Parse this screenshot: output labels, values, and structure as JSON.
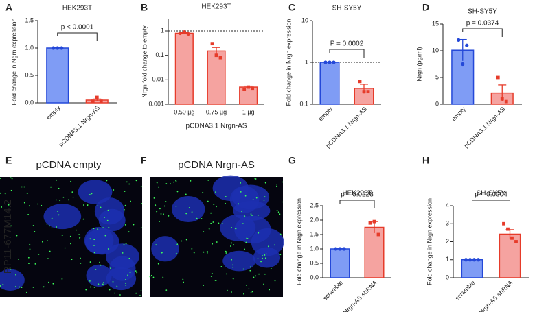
{
  "panel_labels": [
    "A",
    "B",
    "C",
    "D",
    "E",
    "F",
    "G",
    "H"
  ],
  "images": [
    {
      "title": "pCDNA empty"
    },
    {
      "title": "pCDNA Nrgn-AS"
    }
  ],
  "image_row_label": "RP11-677M14.2",
  "chart_data": [
    {
      "type": "bar",
      "title": "HEK293T",
      "y_label": "Fold change in Ngrn expression",
      "categories": [
        "empty",
        "pCDNA3.1 Nrgn-AS"
      ],
      "values": [
        1.0,
        0.05
      ],
      "errors": [
        0.005,
        0.02
      ],
      "points": [
        [
          1.0,
          1.0,
          1.0
        ],
        [
          0.03,
          0.1,
          0.03
        ]
      ],
      "colors": [
        "#7f9cf5",
        "#f5a3a0"
      ],
      "edge_colors": [
        "#2448d8",
        "#e63b2a"
      ],
      "ylim": [
        0,
        1.5
      ],
      "yticks": [
        {
          "value": 0,
          "label": "0.0"
        },
        {
          "value": 0.5,
          "label": "0.5"
        },
        {
          "value": 1,
          "label": "1.0"
        },
        {
          "value": 1.5,
          "label": "1.5"
        }
      ],
      "annotation": "p < 0.0001"
    },
    {
      "type": "bar",
      "title": "HEK293T",
      "y_label": "Nrgn fold change to empty",
      "x_label": "pCDNA3.1 Nrgn-AS",
      "categories": [
        "0.50 µg",
        "0.75 µg",
        "1 µg"
      ],
      "values": [
        0.8,
        0.15,
        0.005
      ],
      "errors": [
        0.05,
        0.06,
        0.0005
      ],
      "points": [
        [
          0.8,
          0.9,
          0.75
        ],
        [
          0.3,
          0.1,
          0.08
        ],
        [
          0.004,
          0.005,
          0.0045
        ]
      ],
      "colors": [
        "#f5a3a0",
        "#f5a3a0",
        "#f5a3a0"
      ],
      "edge_colors": [
        "#e63b2a",
        "#e63b2a",
        "#e63b2a"
      ],
      "log_scale": true,
      "ylim": [
        0.001,
        3
      ],
      "yticks": [
        0.001,
        0.01,
        0.1,
        1
      ],
      "reference_line": 1
    },
    {
      "type": "bar",
      "title": "SH-SY5Y",
      "y_label": "Fold change in Nrgn expression",
      "categories": [
        "empty",
        "pCDNA3.1 Nrgn-AS"
      ],
      "values": [
        1.0,
        0.24
      ],
      "errors": [
        0.005,
        0.06
      ],
      "points": [
        [
          1.0,
          1.0,
          1.0
        ],
        [
          0.35,
          0.2,
          0.2
        ]
      ],
      "colors": [
        "#7f9cf5",
        "#f5a3a0"
      ],
      "edge_colors": [
        "#2448d8",
        "#e63b2a"
      ],
      "log_scale": true,
      "ylim": [
        0.1,
        10
      ],
      "yticks": [
        0.1,
        1,
        10
      ],
      "reference_line": 1,
      "annotation": "P = 0.0002"
    },
    {
      "type": "bar",
      "title": "SH-SY5Y",
      "y_label": "Nrgn (pg/ml)",
      "categories": [
        "empty",
        "pCDNA3.1 Nrgn-AS"
      ],
      "values": [
        10.1,
        2.1
      ],
      "errors": [
        2,
        1.5
      ],
      "points": [
        [
          12,
          7.5,
          11
        ],
        [
          5,
          1,
          0.5
        ]
      ],
      "colors": [
        "#7f9cf5",
        "#f5a3a0"
      ],
      "edge_colors": [
        "#2448d8",
        "#e63b2a"
      ],
      "ylim": [
        0,
        15
      ],
      "yticks": [
        0,
        5,
        10,
        15
      ],
      "annotation": "p = 0.0374"
    },
    {
      "type": "bar",
      "title": "HEK293T",
      "y_label": "Fold change in Nrgn expression",
      "categories": [
        "scramble",
        "Nrgn-AS shRNA"
      ],
      "values": [
        1.0,
        1.75
      ],
      "errors": [
        0.02,
        0.2
      ],
      "points": [
        [
          1.0,
          1.0,
          1.0
        ],
        [
          1.9,
          1.95,
          1.5
        ]
      ],
      "colors": [
        "#7f9cf5",
        "#f5a3a0"
      ],
      "edge_colors": [
        "#2448d8",
        "#e63b2a"
      ],
      "ylim": [
        0,
        2.5
      ],
      "yticks": [
        {
          "value": 0,
          "label": "0.0"
        },
        {
          "value": 0.5,
          "label": "0.5"
        },
        {
          "value": 1,
          "label": "1.0"
        },
        {
          "value": 1.5,
          "label": "1.5"
        },
        {
          "value": 2,
          "label": "2.0"
        },
        {
          "value": 2.5,
          "label": "2.5"
        }
      ],
      "annotation": "p = 0.0228"
    },
    {
      "type": "bar",
      "title": "SH-SY5Y",
      "y_label": "Fold change in Nrgn expression",
      "categories": [
        "scramble",
        "Nrgn-AS shRNA"
      ],
      "values": [
        1.0,
        2.42
      ],
      "errors": [
        0.02,
        0.25
      ],
      "points": [
        [
          1.0,
          1.0,
          1.0,
          1.0
        ],
        [
          3.0,
          2.7,
          2.2,
          2.0
        ]
      ],
      "colors": [
        "#7f9cf5",
        "#f5a3a0"
      ],
      "edge_colors": [
        "#2448d8",
        "#e63b2a"
      ],
      "ylim": [
        0,
        4
      ],
      "yticks": [
        0,
        1,
        2,
        3,
        4
      ],
      "annotation": "p = 0.0004"
    }
  ]
}
